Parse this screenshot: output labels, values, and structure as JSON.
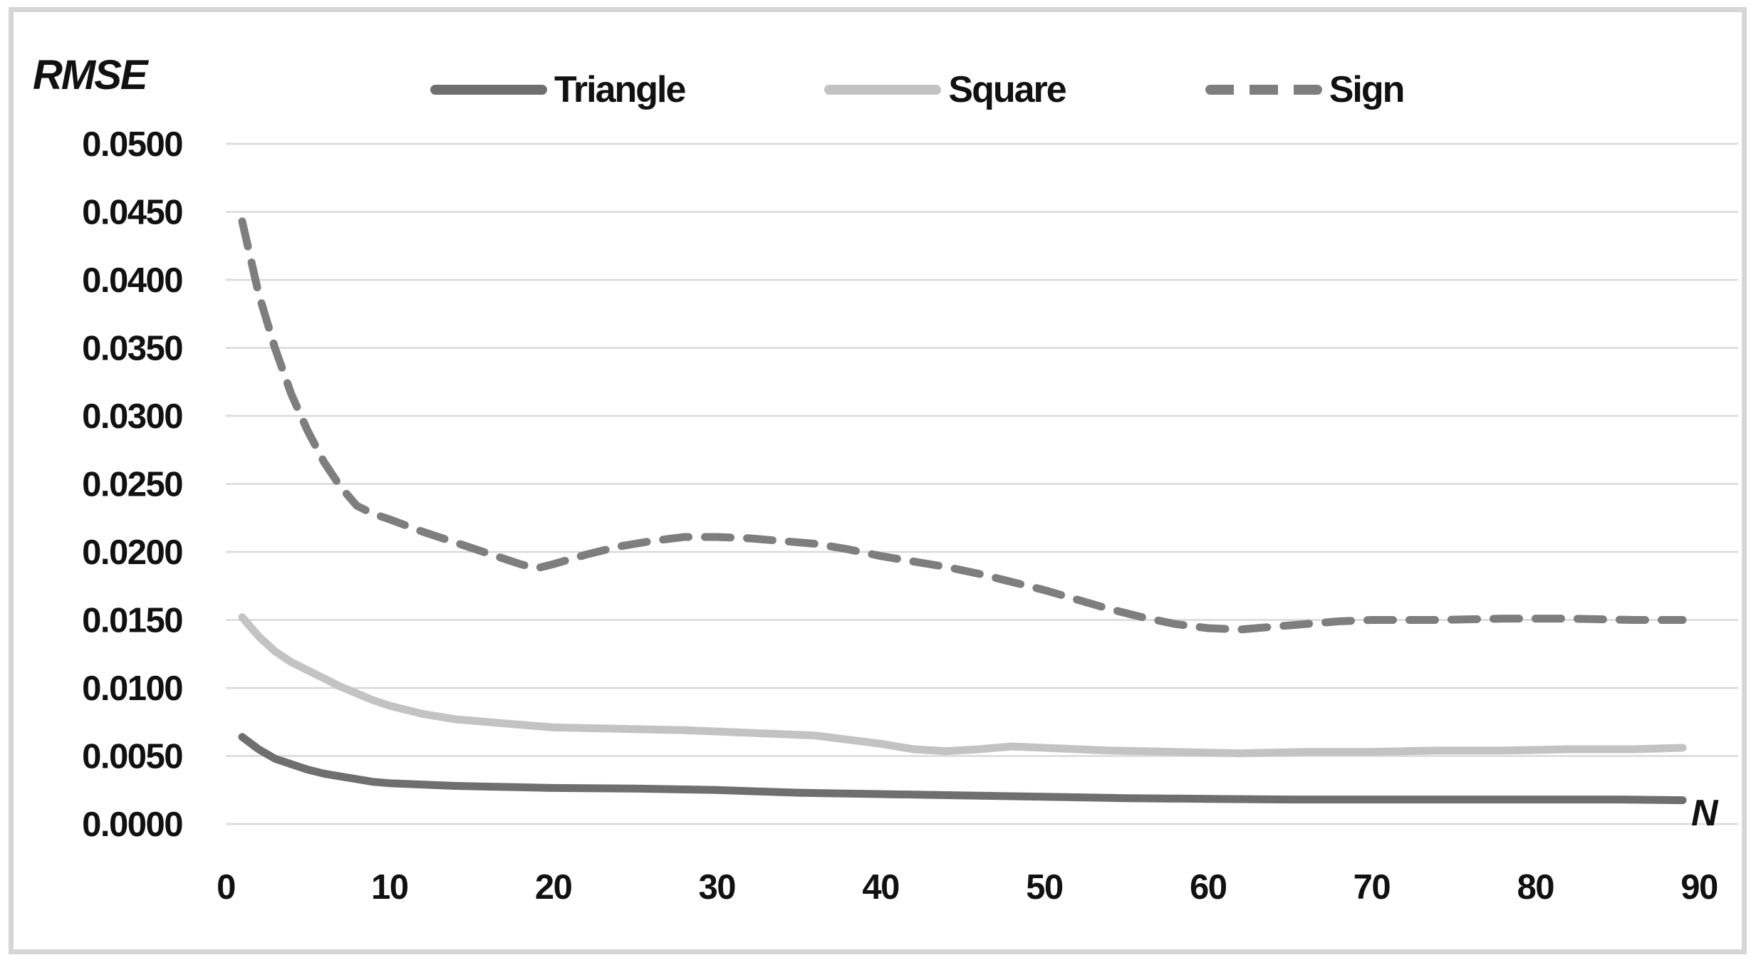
{
  "figure": {
    "background": "#ffffff",
    "frame_color": "#d6d6d6"
  },
  "chart_data": {
    "type": "line",
    "title": "",
    "ylabel": "RMSE",
    "xlabel": "N",
    "xlim": [
      0,
      90
    ],
    "ylim": [
      0.0,
      0.05
    ],
    "grid": "horizontal",
    "gridline_color": "#d9d9d9",
    "text_color": "#111111",
    "legend_position": "top-center",
    "x_ticks": [
      0,
      10,
      20,
      30,
      40,
      50,
      60,
      70,
      80,
      90
    ],
    "x_tick_labels": [
      "0",
      "10",
      "20",
      "30",
      "40",
      "50",
      "60",
      "70",
      "80",
      "90"
    ],
    "y_ticks": [
      0.05,
      0.045,
      0.04,
      0.035,
      0.03,
      0.025,
      0.02,
      0.015,
      0.01,
      0.005,
      0.0
    ],
    "y_tick_labels": [
      "0.0500",
      "0.0450",
      "0.0400",
      "0.0350",
      "0.0300",
      "0.0250",
      "0.0200",
      "0.0150",
      "0.0100",
      "0.0050",
      "0.0000"
    ],
    "series": [
      {
        "name": "Triangle",
        "style": "solid",
        "color": "#6f6f6f",
        "points": [
          [
            1,
            0.0064
          ],
          [
            2,
            0.0055
          ],
          [
            3,
            0.0048
          ],
          [
            4,
            0.0044
          ],
          [
            5,
            0.004
          ],
          [
            6,
            0.0037
          ],
          [
            7,
            0.0035
          ],
          [
            8,
            0.0033
          ],
          [
            9,
            0.0031
          ],
          [
            10,
            0.003
          ],
          [
            12,
            0.0029
          ],
          [
            14,
            0.0028
          ],
          [
            16,
            0.00275
          ],
          [
            18,
            0.0027
          ],
          [
            20,
            0.00265
          ],
          [
            25,
            0.0026
          ],
          [
            30,
            0.0025
          ],
          [
            35,
            0.0023
          ],
          [
            40,
            0.0022
          ],
          [
            45,
            0.0021
          ],
          [
            50,
            0.002
          ],
          [
            55,
            0.0019
          ],
          [
            60,
            0.00185
          ],
          [
            65,
            0.0018
          ],
          [
            70,
            0.0018
          ],
          [
            75,
            0.0018
          ],
          [
            80,
            0.0018
          ],
          [
            85,
            0.0018
          ],
          [
            89,
            0.00175
          ]
        ]
      },
      {
        "name": "Square",
        "style": "solid",
        "color": "#c3c3c3",
        "points": [
          [
            1,
            0.0152
          ],
          [
            2,
            0.0138
          ],
          [
            3,
            0.0127
          ],
          [
            4,
            0.0119
          ],
          [
            5,
            0.0113
          ],
          [
            6,
            0.0107
          ],
          [
            7,
            0.0101
          ],
          [
            8,
            0.0096
          ],
          [
            9,
            0.0091
          ],
          [
            10,
            0.0087
          ],
          [
            12,
            0.0081
          ],
          [
            14,
            0.0077
          ],
          [
            16,
            0.0075
          ],
          [
            18,
            0.0073
          ],
          [
            20,
            0.0071
          ],
          [
            24,
            0.007
          ],
          [
            28,
            0.0069
          ],
          [
            32,
            0.0067
          ],
          [
            36,
            0.0065
          ],
          [
            38,
            0.0062
          ],
          [
            40,
            0.0059
          ],
          [
            42,
            0.0055
          ],
          [
            44,
            0.00535
          ],
          [
            46,
            0.0055
          ],
          [
            48,
            0.0057
          ],
          [
            50,
            0.0056
          ],
          [
            54,
            0.0054
          ],
          [
            58,
            0.0053
          ],
          [
            62,
            0.0052
          ],
          [
            66,
            0.0053
          ],
          [
            70,
            0.0053
          ],
          [
            74,
            0.0054
          ],
          [
            78,
            0.0054
          ],
          [
            82,
            0.0055
          ],
          [
            86,
            0.0055
          ],
          [
            89,
            0.0056
          ]
        ]
      },
      {
        "name": "Sign",
        "style": "dashed",
        "color": "#7e7e7e",
        "points": [
          [
            1,
            0.0443
          ],
          [
            2,
            0.039
          ],
          [
            3,
            0.035
          ],
          [
            4,
            0.0316
          ],
          [
            5,
            0.0289
          ],
          [
            6,
            0.0266
          ],
          [
            7,
            0.0248
          ],
          [
            8,
            0.0234
          ],
          [
            9,
            0.0228
          ],
          [
            10,
            0.0224
          ],
          [
            12,
            0.0215
          ],
          [
            14,
            0.0207
          ],
          [
            16,
            0.0199
          ],
          [
            18,
            0.0191
          ],
          [
            19,
            0.0188
          ],
          [
            20,
            0.0191
          ],
          [
            22,
            0.0198
          ],
          [
            24,
            0.0204
          ],
          [
            26,
            0.0208
          ],
          [
            28,
            0.0211
          ],
          [
            30,
            0.0211
          ],
          [
            32,
            0.021
          ],
          [
            34,
            0.0208
          ],
          [
            36,
            0.0206
          ],
          [
            38,
            0.0202
          ],
          [
            40,
            0.0197
          ],
          [
            42,
            0.0193
          ],
          [
            44,
            0.0189
          ],
          [
            46,
            0.0184
          ],
          [
            48,
            0.0178
          ],
          [
            50,
            0.0172
          ],
          [
            52,
            0.0165
          ],
          [
            54,
            0.0158
          ],
          [
            56,
            0.0152
          ],
          [
            58,
            0.0147
          ],
          [
            60,
            0.0144
          ],
          [
            62,
            0.0143
          ],
          [
            64,
            0.0145
          ],
          [
            66,
            0.0147
          ],
          [
            68,
            0.0149
          ],
          [
            70,
            0.015
          ],
          [
            74,
            0.015
          ],
          [
            78,
            0.0151
          ],
          [
            82,
            0.0151
          ],
          [
            86,
            0.015
          ],
          [
            89,
            0.015
          ]
        ]
      }
    ]
  }
}
